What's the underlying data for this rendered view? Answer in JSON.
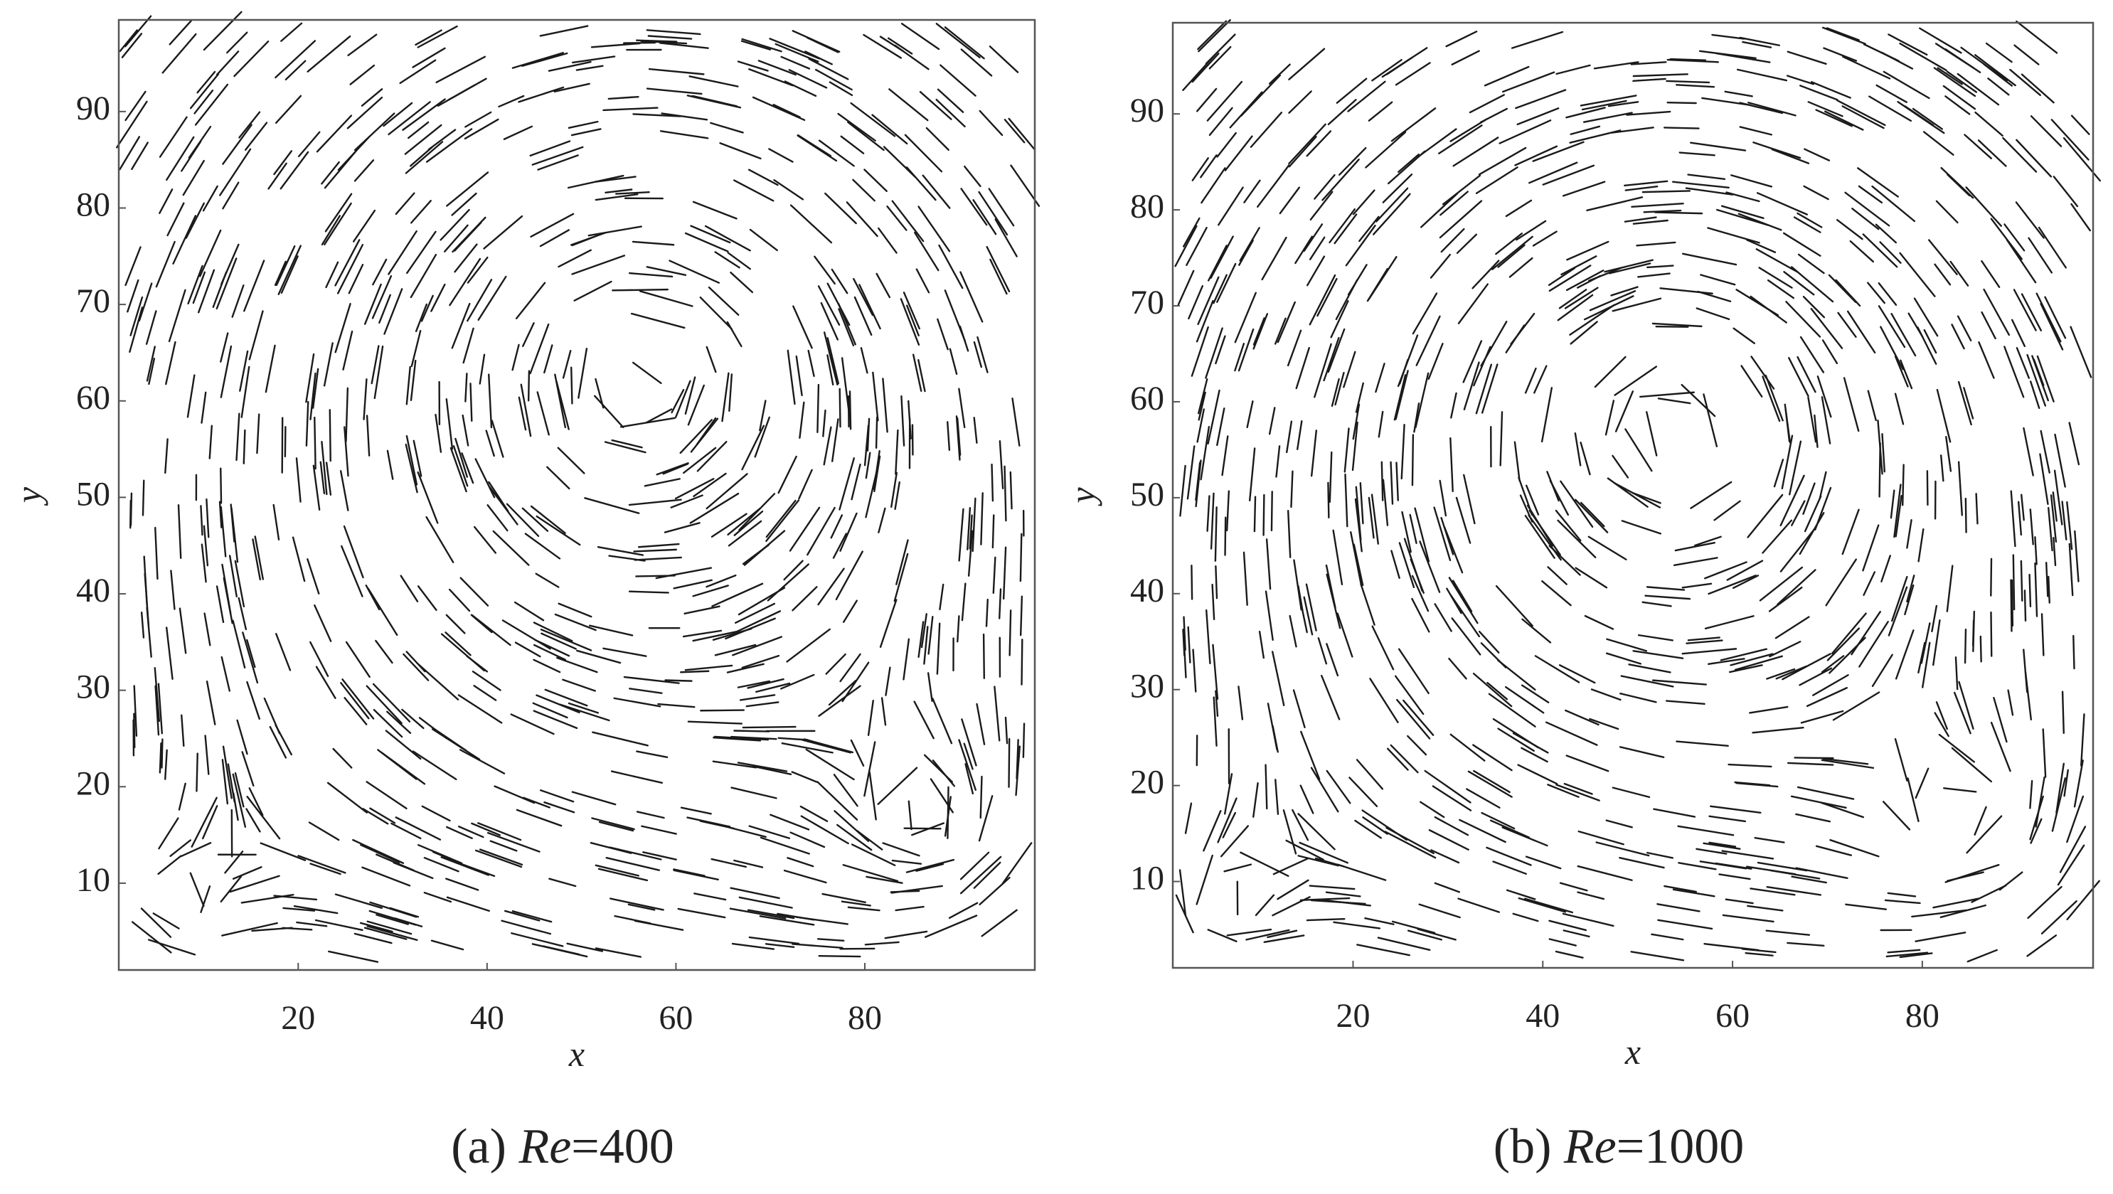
{
  "chart_data": [
    {
      "type": "streamline",
      "caption": [
        "(a) ",
        "Re",
        "=400"
      ],
      "xlabel": "x",
      "ylabel": "y",
      "xlim": [
        1,
        98
      ],
      "ylim": [
        1,
        99.5
      ],
      "xticks": [
        20,
        40,
        60,
        80
      ],
      "yticks": [
        10,
        20,
        30,
        40,
        50,
        60,
        70,
        80,
        90
      ]
    },
    {
      "type": "streamline",
      "caption": [
        "(b) ",
        "Re",
        "=1000"
      ],
      "xlabel": "x",
      "ylabel": "y",
      "xlim": [
        1,
        98
      ],
      "ylim": [
        1,
        99.5
      ],
      "xticks": [
        20,
        40,
        60,
        80
      ],
      "yticks": [
        10,
        20,
        30,
        40,
        50,
        60,
        70,
        80,
        90
      ]
    }
  ]
}
